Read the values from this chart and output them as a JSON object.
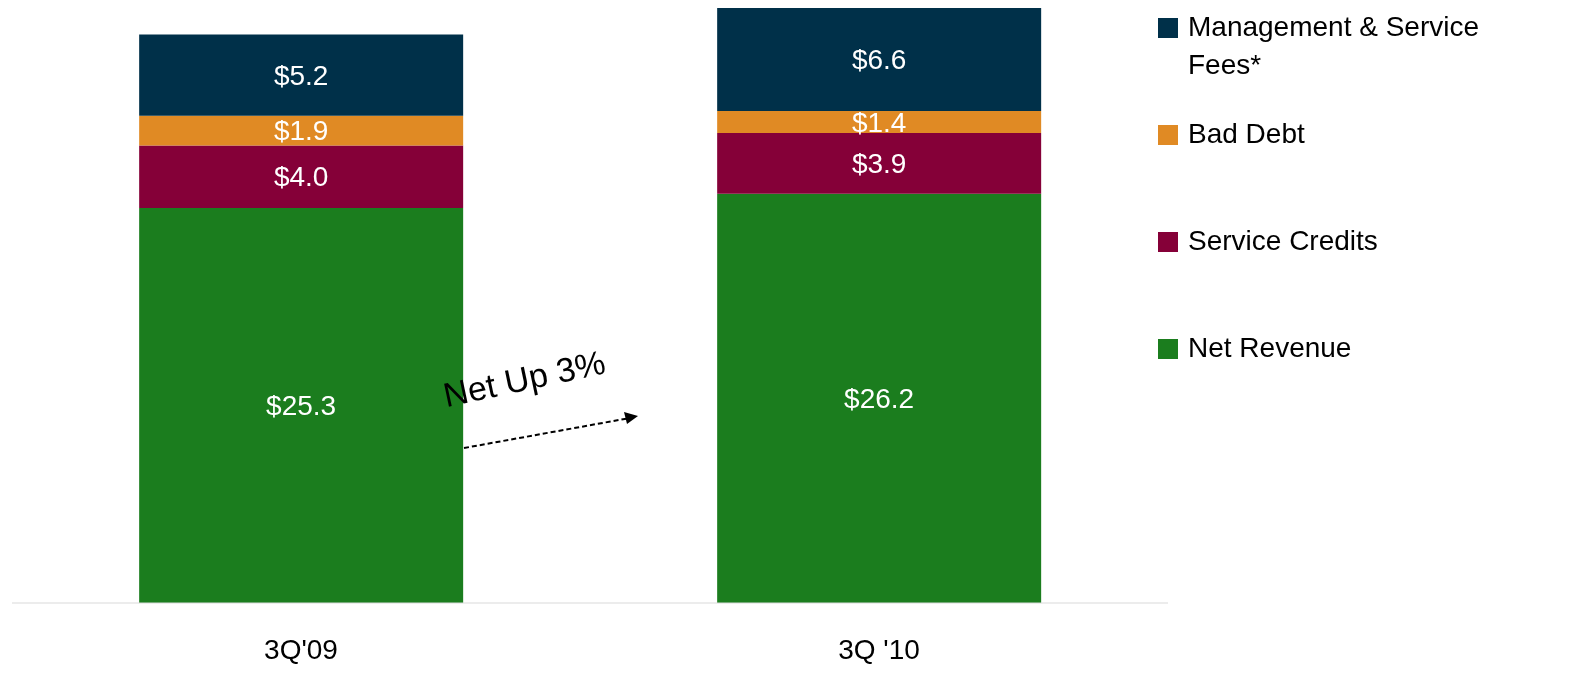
{
  "chart_data": {
    "type": "bar",
    "stacked": true,
    "categories": [
      "3Q'09",
      "3Q '10"
    ],
    "series": [
      {
        "name": "Net Revenue",
        "color": "#1b7d1e",
        "values": [
          25.3,
          26.2
        ],
        "value_labels": [
          "$25.3",
          "$26.2"
        ]
      },
      {
        "name": "Service Credits",
        "color": "#850038",
        "values": [
          4.0,
          3.9
        ],
        "value_labels": [
          "$4.0",
          "$3.9"
        ]
      },
      {
        "name": "Bad Debt",
        "color": "#e08a24",
        "values": [
          1.9,
          1.4
        ],
        "value_labels": [
          "$1.9",
          "$1.4"
        ]
      },
      {
        "name": "Management & Service Fees*",
        "color": "#003049",
        "values": [
          5.2,
          6.6
        ],
        "value_labels": [
          "$5.2",
          "$6.6"
        ]
      }
    ],
    "annotations": [
      "Net Up 3%"
    ],
    "legend": "right",
    "grid": false
  }
}
